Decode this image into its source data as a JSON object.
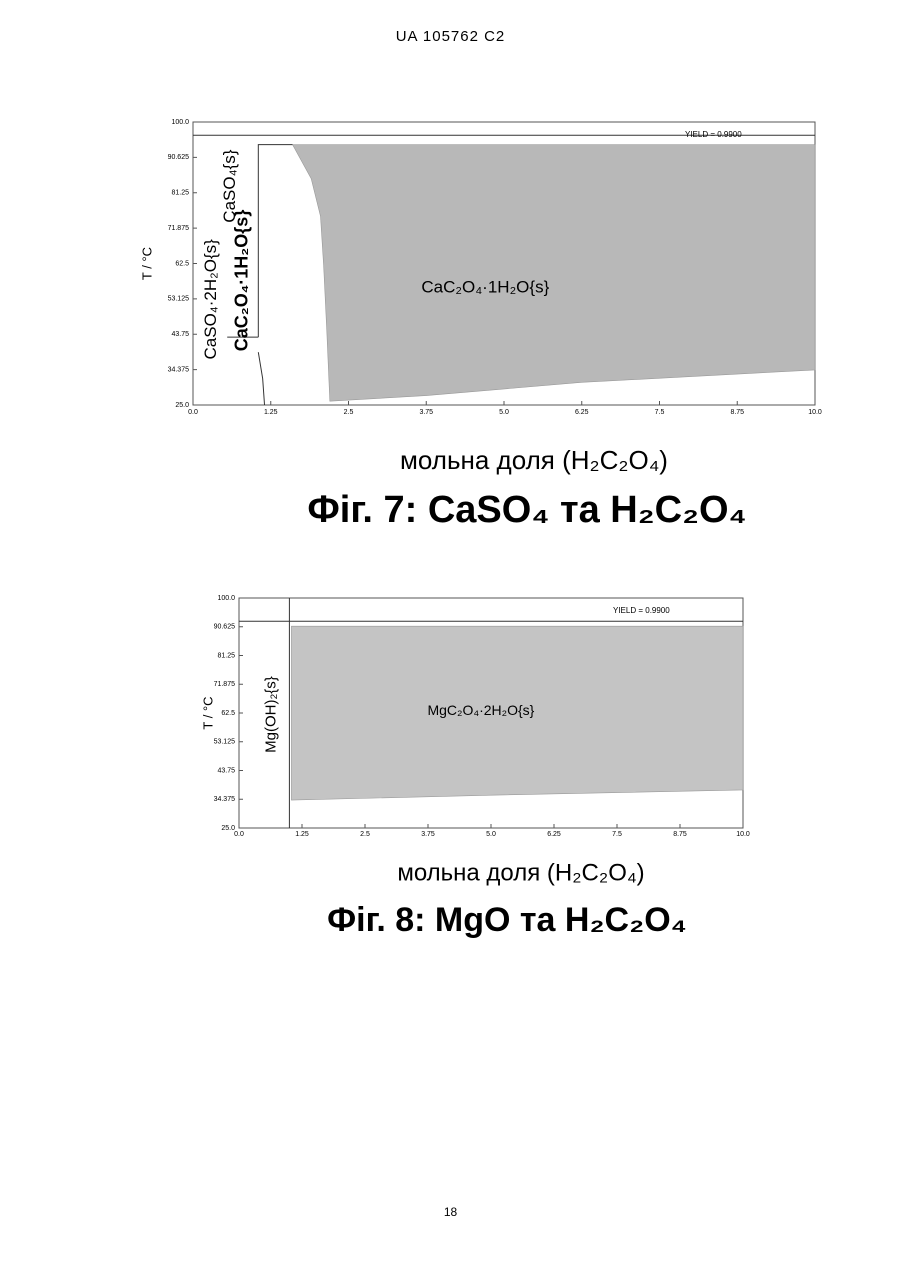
{
  "header": "UA   105762   C2",
  "page_number": "18",
  "chart_data": [
    {
      "type": "area",
      "ylabel": "T / °C",
      "xlabel": "мольна доля (H₂C₂O₄)",
      "caption": "Фіг. 7: CaSO₄  та  H₂C₂O₄",
      "annotation": "YIELD = 0.9900",
      "xlim": [
        0,
        10
      ],
      "ylim": [
        25,
        100
      ],
      "xticks": [
        {
          "value": 0,
          "label": "0.0"
        },
        1.25,
        2.5,
        3.75,
        {
          "value": 5,
          "label": "5.0"
        },
        6.25,
        7.5,
        8.75,
        {
          "value": 10,
          "label": "10.0"
        }
      ],
      "yticks": [
        {
          "value": 25,
          "label": "25.0"
        },
        34.375,
        43.75,
        53.125,
        62.5,
        71.875,
        81.25,
        90.625,
        {
          "value": 100,
          "label": "100.0"
        }
      ],
      "series": [
        {
          "name": "CaC₂O₄·1H₂O{s}",
          "color": "#b8b8b8",
          "x": [
            1.6,
            1.9,
            2.05,
            2.1,
            2.15,
            2.2,
            3.75,
            6.25,
            10,
            10
          ],
          "values": [
            94,
            85,
            75,
            62,
            45,
            26,
            27.5,
            31,
            34.3,
            94
          ]
        }
      ],
      "boundaries": [
        {
          "x": [
            0,
            10
          ],
          "values": [
            96.5,
            96.5
          ]
        },
        {
          "x": [
            1.05,
            1.05,
            1.6
          ],
          "values": [
            43,
            94,
            94
          ]
        },
        {
          "x": [
            0.55,
            1.05
          ],
          "values": [
            43,
            43
          ]
        },
        {
          "x": [
            1.05,
            1.12,
            1.15
          ],
          "values": [
            39,
            32,
            25
          ]
        }
      ],
      "region_labels": [
        "CaSO₄·2H₂O{s}",
        "CaSO₄{s}",
        "CaC₂O₄·1H₂O{s}"
      ]
    },
    {
      "type": "area",
      "ylabel": "T / °C",
      "xlabel": "мольна доля (H₂C₂O₄)",
      "caption": "Фіг. 8: MgO  та  H₂C₂O₄",
      "annotation": "YIELD = 0.9900",
      "xlim": [
        0,
        10
      ],
      "ylim": [
        25,
        100
      ],
      "xticks": [
        {
          "value": 0,
          "label": "0.0"
        },
        1.25,
        2.5,
        3.75,
        {
          "value": 5,
          "label": "5.0"
        },
        6.25,
        7.5,
        8.75,
        {
          "value": 10,
          "label": "10.0"
        }
      ],
      "yticks": [
        {
          "value": 25,
          "label": "25.0"
        },
        34.375,
        43.75,
        53.125,
        62.5,
        71.875,
        81.25,
        90.625,
        {
          "value": 100,
          "label": "100.0"
        }
      ],
      "series": [
        {
          "name": "MgC₂O₄·2H₂O{s}",
          "color": "#c4c4c4",
          "x": [
            1.04,
            1.04,
            5,
            10,
            10
          ],
          "values": [
            90.8,
            34.1,
            35.7,
            37.4,
            90.8
          ]
        }
      ],
      "boundaries": [
        {
          "x": [
            1.0,
            1.0
          ],
          "values": [
            25,
            100
          ]
        },
        {
          "x": [
            0,
            10
          ],
          "values": [
            92.4,
            92.4
          ]
        }
      ],
      "region_labels": [
        "Mg(OH)₂{s}"
      ]
    }
  ]
}
